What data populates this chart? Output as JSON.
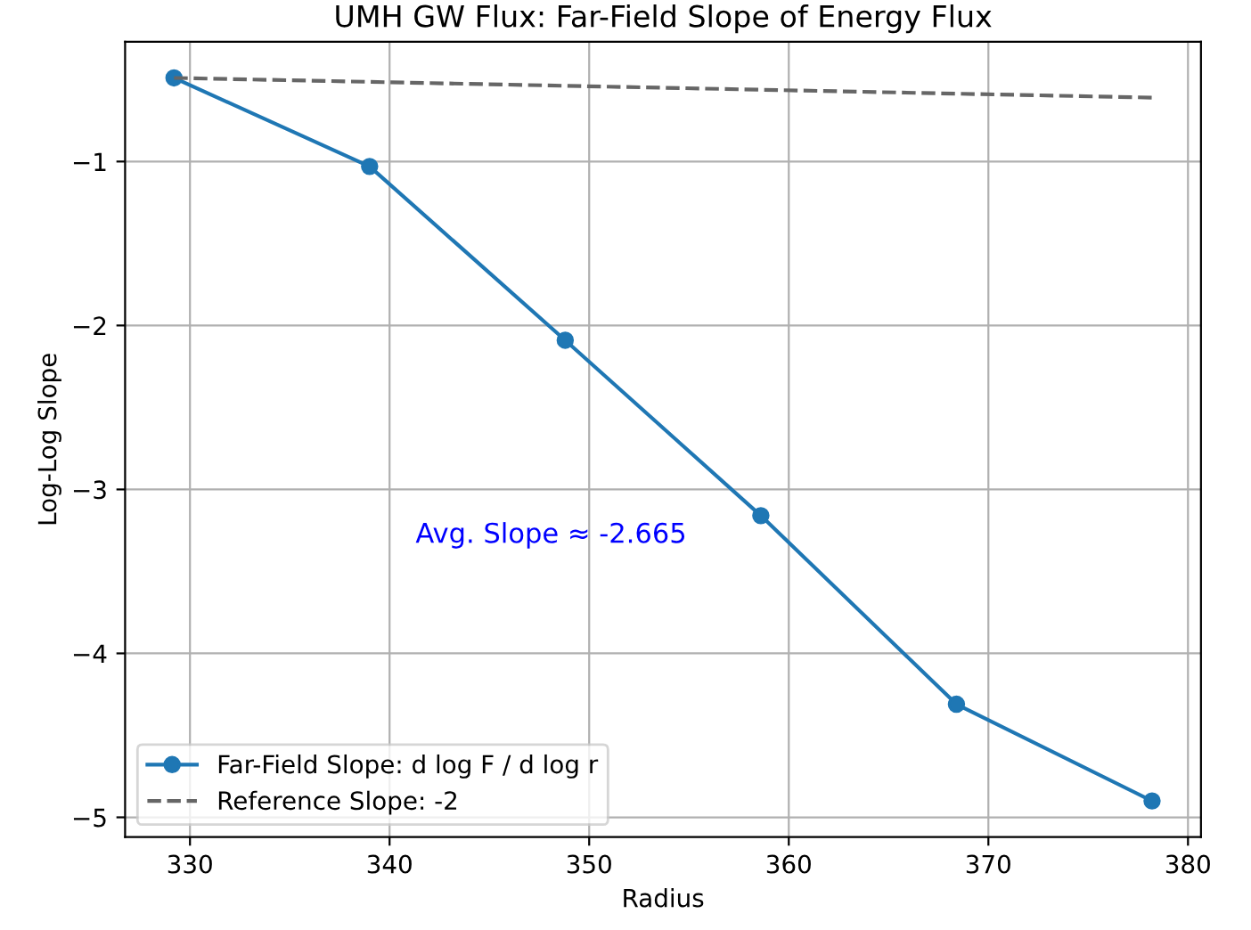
{
  "chart_data": {
    "type": "line",
    "title": "UMH GW Flux: Far-Field Slope of Energy Flux",
    "xlabel": "Radius",
    "ylabel": "Log-Log Slope",
    "series": [
      {
        "name": "Far-Field Slope: d log F / d log r",
        "color": "#1f77b4",
        "marker": "circle",
        "line_style": "solid",
        "x": [
          329.2,
          339.0,
          348.8,
          358.6,
          368.4,
          378.2
        ],
        "values": [
          -0.49,
          -1.03,
          -2.09,
          -3.16,
          -4.31,
          -4.9
        ]
      },
      {
        "name": "Reference Slope: -2",
        "color": "#666666",
        "marker": "none",
        "line_style": "dashed",
        "x": [
          329.2,
          378.2
        ],
        "values": [
          -0.49,
          -0.61
        ]
      }
    ],
    "annotations": [
      "Avg. Slope ≈ -2.665"
    ],
    "xlim": [
      326.75,
      380.65
    ],
    "ylim": [
      -5.12,
      -0.27
    ],
    "xticks": [
      330,
      340,
      350,
      360,
      370,
      380
    ],
    "yticks": [
      {
        "value": -1,
        "label": "−1"
      },
      {
        "value": -2,
        "label": "−2"
      },
      {
        "value": -3,
        "label": "−3"
      },
      {
        "value": -4,
        "label": "−4"
      },
      {
        "value": -5,
        "label": "−5"
      }
    ],
    "grid": true,
    "legend": "bottom left"
  }
}
